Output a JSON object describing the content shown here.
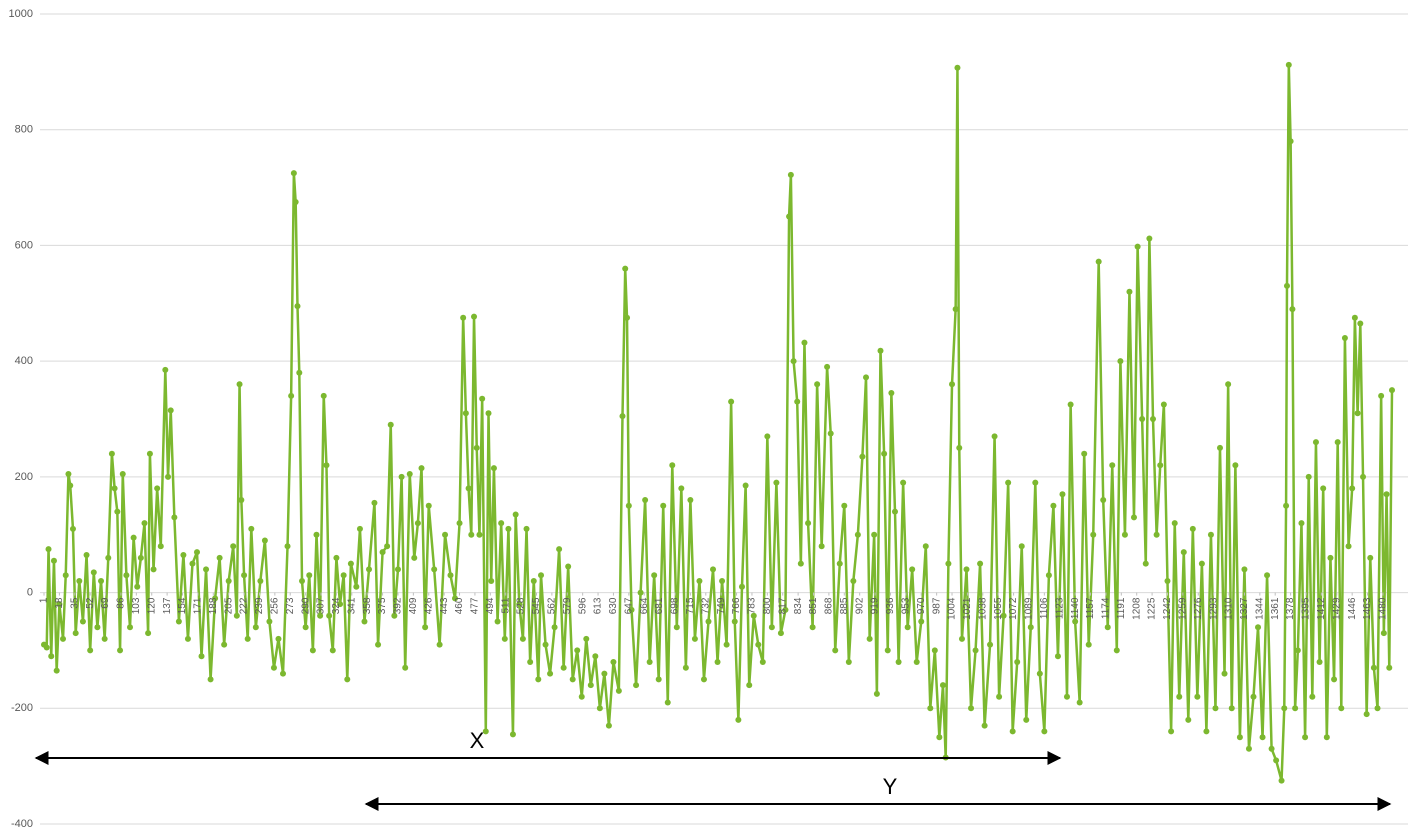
{
  "chart_data": {
    "type": "line",
    "color": "#7cb82f",
    "grid": true,
    "markers": true,
    "xlim": [
      1,
      1490
    ],
    "ylim": [
      -400,
      1000
    ],
    "yticks": [
      -400,
      -200,
      0,
      200,
      400,
      600,
      800,
      1000
    ],
    "xticks": [
      1,
      18,
      35,
      52,
      69,
      86,
      103,
      120,
      137,
      154,
      171,
      188,
      205,
      222,
      239,
      256,
      273,
      290,
      307,
      324,
      341,
      358,
      375,
      392,
      409,
      426,
      443,
      460,
      477,
      494,
      511,
      528,
      545,
      562,
      579,
      596,
      613,
      630,
      647,
      664,
      681,
      698,
      715,
      732,
      749,
      766,
      783,
      800,
      817,
      834,
      851,
      868,
      885,
      902,
      919,
      936,
      953,
      970,
      987,
      1004,
      1021,
      1038,
      1055,
      1072,
      1089,
      1106,
      1123,
      1140,
      1157,
      1174,
      1191,
      1208,
      1225,
      1242,
      1259,
      1276,
      1293,
      1310,
      1327,
      1344,
      1361,
      1378,
      1395,
      1412,
      1429,
      1446,
      1463,
      1480
    ],
    "annotations": [
      "X",
      "Y"
    ],
    "x": [
      1,
      4,
      6,
      9,
      12,
      15,
      18,
      22,
      25,
      28,
      30,
      33,
      36,
      40,
      44,
      48,
      52,
      56,
      60,
      64,
      68,
      72,
      76,
      79,
      82,
      85,
      88,
      92,
      96,
      100,
      104,
      108,
      112,
      116,
      118,
      122,
      126,
      130,
      135,
      138,
      141,
      145,
      150,
      155,
      160,
      165,
      170,
      175,
      180,
      185,
      190,
      195,
      200,
      205,
      210,
      214,
      217,
      219,
      222,
      226,
      230,
      235,
      240,
      245,
      250,
      255,
      260,
      265,
      270,
      274,
      277,
      279,
      281,
      283,
      286,
      290,
      294,
      298,
      302,
      306,
      310,
      313,
      316,
      320,
      324,
      328,
      332,
      336,
      340,
      346,
      350,
      355,
      360,
      366,
      370,
      375,
      380,
      384,
      388,
      392,
      396,
      400,
      405,
      410,
      414,
      418,
      422,
      426,
      432,
      438,
      444,
      450,
      455,
      460,
      464,
      467,
      470,
      473,
      476,
      479,
      482,
      485,
      489,
      492,
      495,
      498,
      502,
      506,
      510,
      514,
      519,
      522,
      526,
      530,
      534,
      538,
      542,
      547,
      550,
      555,
      560,
      565,
      570,
      575,
      580,
      585,
      590,
      595,
      600,
      605,
      610,
      615,
      620,
      625,
      630,
      636,
      640,
      643,
      645,
      647,
      650,
      655,
      660,
      665,
      670,
      675,
      680,
      685,
      690,
      695,
      700,
      705,
      710,
      715,
      720,
      725,
      730,
      735,
      740,
      745,
      750,
      755,
      760,
      764,
      768,
      772,
      776,
      780,
      785,
      790,
      795,
      800,
      805,
      810,
      815,
      820,
      824,
      826,
      829,
      833,
      837,
      841,
      845,
      850,
      855,
      860,
      866,
      870,
      875,
      880,
      885,
      890,
      895,
      900,
      905,
      909,
      913,
      918,
      921,
      925,
      929,
      933,
      937,
      941,
      945,
      950,
      955,
      960,
      965,
      970,
      975,
      980,
      985,
      990,
      994,
      997,
      1000,
      1004,
      1008,
      1010,
      1012,
      1015,
      1020,
      1025,
      1030,
      1035,
      1040,
      1046,
      1051,
      1056,
      1061,
      1066,
      1071,
      1076,
      1081,
      1086,
      1091,
      1096,
      1101,
      1106,
      1111,
      1116,
      1121,
      1126,
      1131,
      1135,
      1140,
      1145,
      1150,
      1155,
      1160,
      1166,
      1171,
      1176,
      1181,
      1186,
      1190,
      1195,
      1200,
      1205,
      1209,
      1214,
      1218,
      1222,
      1226,
      1230,
      1234,
      1238,
      1242,
      1246,
      1250,
      1255,
      1260,
      1265,
      1270,
      1275,
      1280,
      1285,
      1290,
      1295,
      1300,
      1305,
      1309,
      1313,
      1317,
      1322,
      1327,
      1332,
      1337,
      1342,
      1347,
      1352,
      1357,
      1362,
      1368,
      1371,
      1373,
      1374,
      1376,
      1378,
      1380,
      1383,
      1386,
      1390,
      1394,
      1398,
      1402,
      1406,
      1410,
      1414,
      1418,
      1422,
      1426,
      1430,
      1434,
      1438,
      1442,
      1446,
      1449,
      1452,
      1455,
      1458,
      1462,
      1466,
      1470,
      1474,
      1478,
      1481,
      1484,
      1487,
      1490
    ],
    "values": [
      -90,
      -95,
      75,
      -110,
      55,
      -135,
      -20,
      -80,
      30,
      205,
      185,
      110,
      -70,
      20,
      -50,
      65,
      -100,
      35,
      -60,
      20,
      -80,
      60,
      240,
      180,
      140,
      -100,
      205,
      30,
      -60,
      95,
      10,
      60,
      120,
      -70,
      240,
      40,
      180,
      80,
      385,
      200,
      315,
      130,
      -50,
      65,
      -80,
      50,
      70,
      -110,
      40,
      -150,
      -10,
      60,
      -90,
      20,
      80,
      -40,
      360,
      160,
      30,
      -80,
      110,
      -60,
      20,
      90,
      -50,
      -130,
      -80,
      -140,
      80,
      340,
      725,
      675,
      495,
      380,
      20,
      -60,
      30,
      -100,
      100,
      -40,
      340,
      220,
      -40,
      -100,
      60,
      -20,
      30,
      -150,
      50,
      10,
      110,
      -50,
      40,
      155,
      -90,
      70,
      80,
      290,
      -40,
      40,
      200,
      -130,
      205,
      60,
      120,
      215,
      -60,
      150,
      40,
      -90,
      100,
      30,
      -10,
      120,
      475,
      310,
      180,
      100,
      477,
      250,
      100,
      335,
      -240,
      310,
      20,
      215,
      -50,
      120,
      -80,
      110,
      -245,
      135,
      -20,
      -80,
      110,
      -120,
      20,
      -150,
      30,
      -90,
      -140,
      -60,
      75,
      -130,
      45,
      -150,
      -100,
      -180,
      -80,
      -160,
      -110,
      -200,
      -140,
      -230,
      -120,
      -170,
      305,
      560,
      475,
      150,
      -30,
      -160,
      0,
      160,
      -120,
      30,
      -150,
      150,
      -190,
      220,
      -60,
      180,
      -130,
      160,
      -80,
      20,
      -150,
      -50,
      40,
      -120,
      20,
      -90,
      330,
      -50,
      -220,
      10,
      185,
      -160,
      -40,
      -90,
      -120,
      270,
      -60,
      190,
      -70,
      -30,
      650,
      722,
      400,
      330,
      50,
      432,
      120,
      -60,
      360,
      80,
      390,
      275,
      -100,
      50,
      150,
      -120,
      20,
      100,
      235,
      372,
      -80,
      100,
      -175,
      418,
      240,
      -100,
      345,
      140,
      -120,
      190,
      -60,
      40,
      -120,
      -50,
      80,
      -200,
      -100,
      -250,
      -160,
      -285,
      50,
      360,
      490,
      907,
      250,
      -80,
      40,
      -200,
      -100,
      50,
      -230,
      -90,
      270,
      -180,
      -40,
      190,
      -240,
      -120,
      80,
      -220,
      -60,
      190,
      -140,
      -240,
      30,
      150,
      -110,
      170,
      -180,
      325,
      -50,
      -190,
      240,
      -90,
      100,
      572,
      160,
      -60,
      220,
      -100,
      400,
      100,
      520,
      130,
      598,
      300,
      50,
      612,
      300,
      100,
      220,
      325,
      20,
      -240,
      120,
      -180,
      70,
      -220,
      110,
      -180,
      50,
      -240,
      100,
      -200,
      250,
      -140,
      360,
      -200,
      220,
      -250,
      40,
      -270,
      -180,
      -60,
      -250,
      30,
      -270,
      -290,
      -325,
      -200,
      150,
      530,
      912,
      780,
      490,
      -200,
      -100,
      120,
      -250,
      200,
      -180,
      260,
      -120,
      180,
      -250,
      60,
      -150,
      260,
      -200,
      440,
      80,
      180,
      475,
      310,
      465,
      200,
      -210,
      60,
      -130,
      -200,
      340,
      -70,
      170,
      -130,
      350
    ]
  }
}
